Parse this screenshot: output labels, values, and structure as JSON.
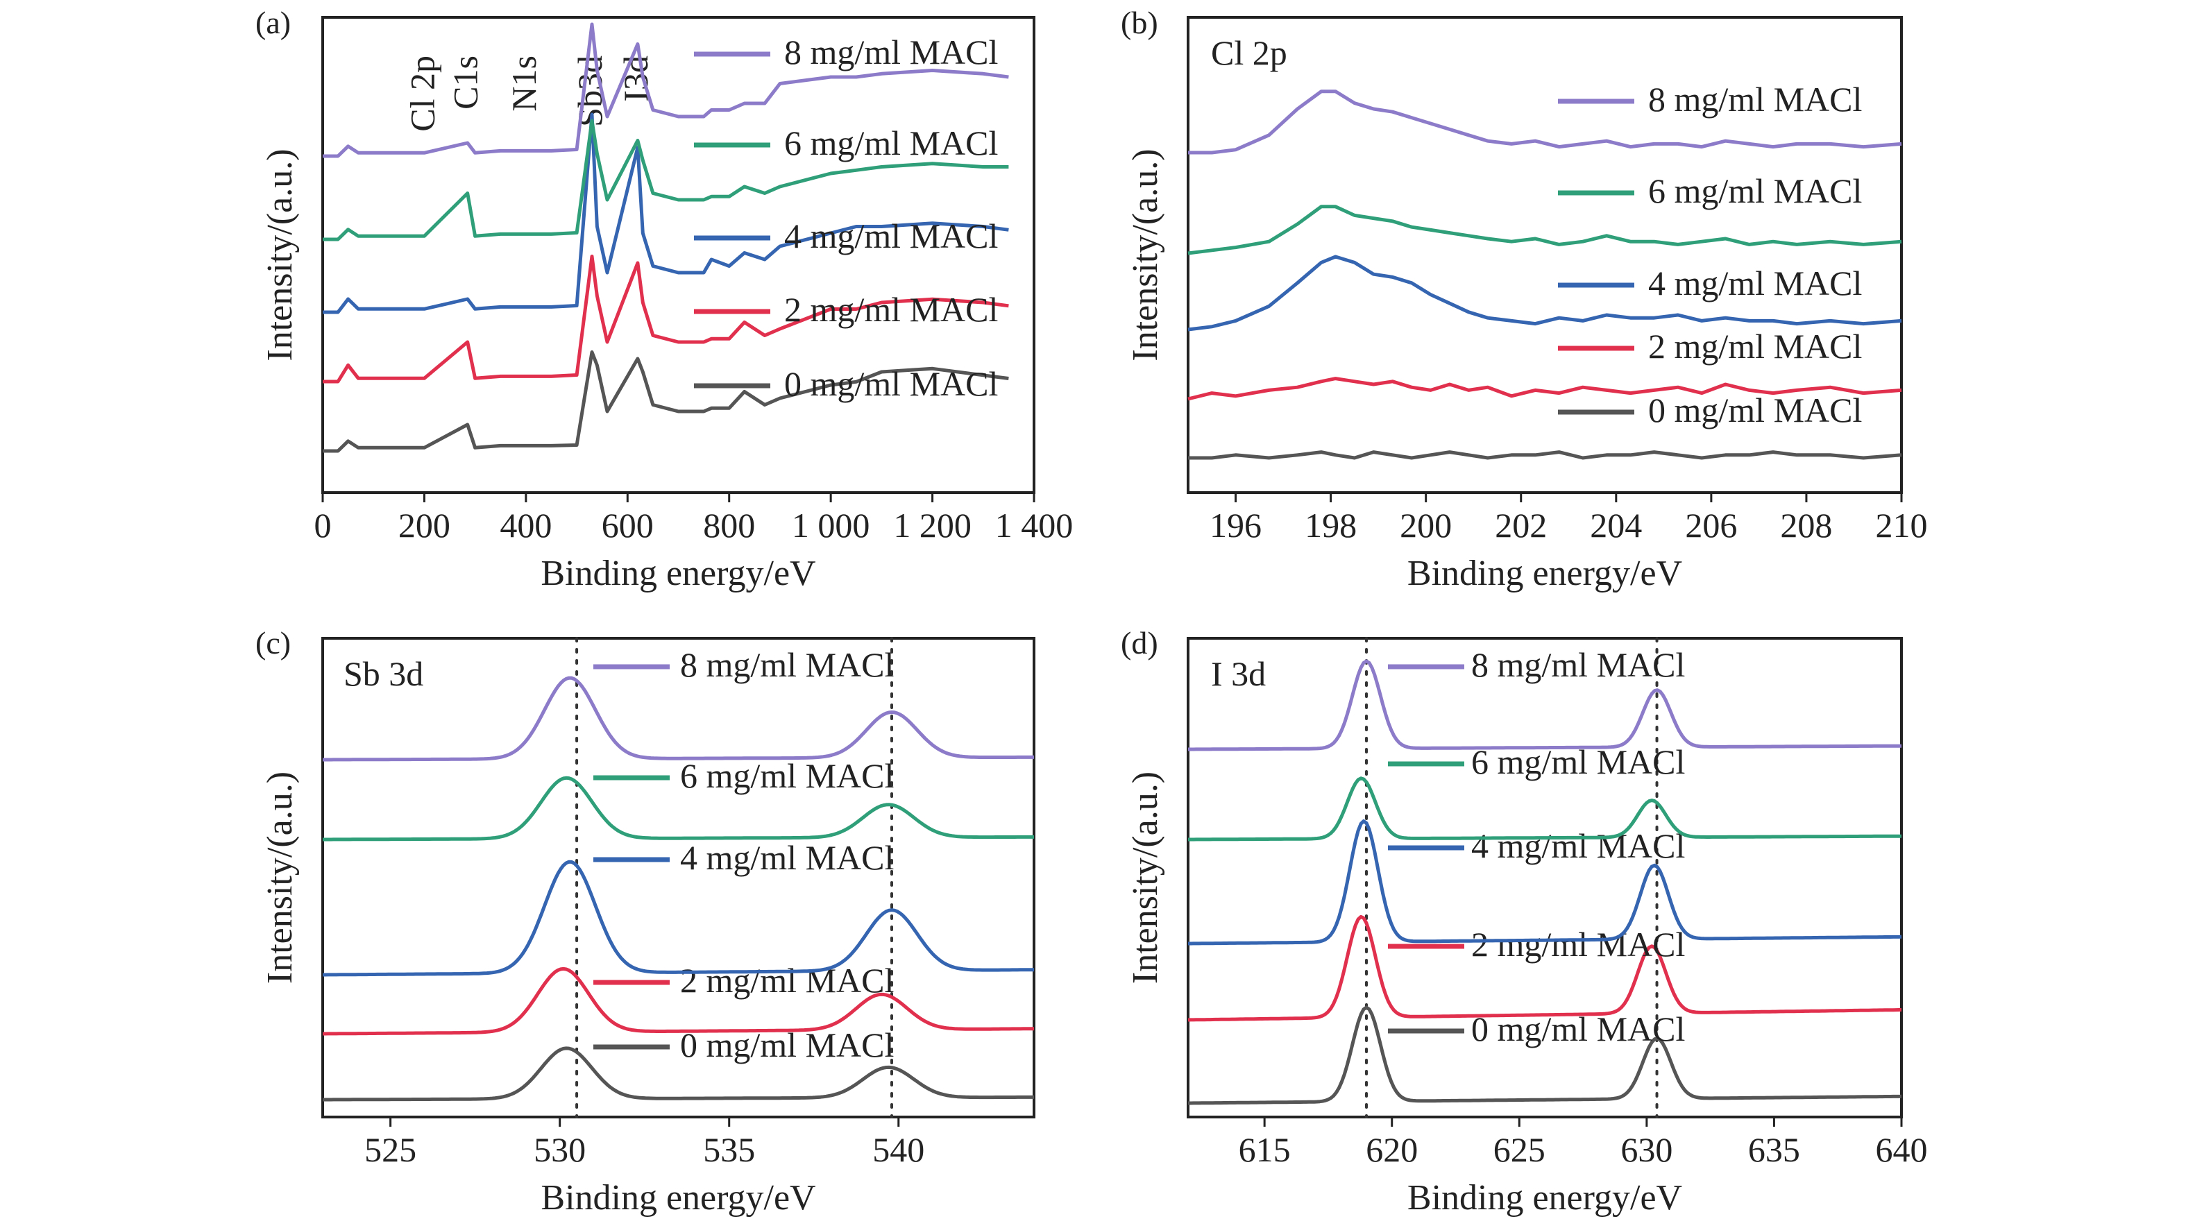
{
  "chart_data": [
    {
      "id": "a",
      "panel_label": "(a)",
      "type": "line",
      "xlabel": "Binding energy/eV",
      "ylabel": "Intensity/(a.u.)",
      "xlim": [
        0,
        1400
      ],
      "xticks": [
        0,
        200,
        400,
        600,
        800,
        1000,
        1200,
        1400
      ],
      "xtick_labels": [
        "0",
        "200",
        "400",
        "600",
        "800",
        "1 000",
        "1 200",
        "1 400"
      ],
      "grid": false,
      "legend_position": "right",
      "peak_labels": [
        {
          "text": "Cl 2p",
          "x": 200
        },
        {
          "text": "C1s",
          "x": 285
        },
        {
          "text": "N1s",
          "x": 400
        },
        {
          "text": "Sb3d",
          "x": 530
        },
        {
          "text": "I3d",
          "x": 620
        }
      ],
      "series": [
        {
          "name": "0 mg/ml MACl",
          "color": "#555555",
          "y": [
            0,
            0,
            1.5,
            0.5,
            0.5,
            0.5,
            4,
            0.5,
            0.8,
            0.8,
            0.8,
            0.9,
            15,
            13,
            6,
            14,
            12,
            7,
            6,
            6,
            6.5,
            6.5,
            9,
            7,
            8,
            10,
            10.5,
            12,
            12.5,
            11.5,
            11
          ]
        },
        {
          "name": "2 mg/ml MACl",
          "color": "#e0304e",
          "y": [
            0,
            0,
            2.5,
            0.5,
            0.5,
            0.5,
            6,
            0.5,
            0.8,
            0.8,
            0.8,
            1,
            19,
            13,
            6,
            18,
            12,
            7,
            6,
            6,
            6.5,
            6.5,
            9,
            7,
            8,
            11,
            11,
            12,
            12.5,
            12,
            11.5
          ]
        },
        {
          "name": "4 mg/ml MACl",
          "color": "#3565b0",
          "y": [
            0,
            0,
            2,
            0.5,
            0.5,
            0.5,
            2,
            0.5,
            0.8,
            0.8,
            0.8,
            1,
            30,
            13,
            6,
            25,
            12,
            7,
            6,
            6,
            8,
            7,
            9,
            8,
            10,
            12,
            13,
            13,
            13.5,
            13,
            12.5
          ]
        },
        {
          "name": "6 mg/ml MACl",
          "color": "#2f9f7a",
          "y": [
            0,
            0,
            1.5,
            0.5,
            0.5,
            0.5,
            7,
            0.5,
            0.8,
            0.8,
            0.8,
            1,
            18,
            13,
            6,
            15,
            12,
            7,
            6,
            6,
            6.5,
            6.5,
            8,
            7,
            8,
            10,
            10.5,
            11,
            11.5,
            11,
            11
          ]
        },
        {
          "name": "8 mg/ml MACl",
          "color": "#8c7bc8",
          "y": [
            0,
            0,
            1.5,
            0.5,
            0.5,
            0.5,
            2,
            0.5,
            0.8,
            0.8,
            0.8,
            1,
            20,
            13,
            6,
            17,
            12,
            7,
            6,
            6,
            7,
            7,
            8,
            8,
            11,
            12,
            12,
            12.5,
            13,
            12.5,
            12
          ]
        }
      ],
      "x": [
        0,
        30,
        50,
        70,
        100,
        200,
        285,
        300,
        350,
        400,
        450,
        500,
        530,
        540,
        560,
        620,
        630,
        650,
        700,
        750,
        765,
        800,
        830,
        870,
        900,
        1000,
        1050,
        1100,
        1200,
        1300,
        1350
      ]
    },
    {
      "id": "b",
      "panel_label": "(b)",
      "type": "line",
      "title": "Cl 2p",
      "xlabel": "Binding energy/eV",
      "ylabel": "Intensity/(a.u.)",
      "xlim": [
        195,
        210
      ],
      "xticks": [
        196,
        198,
        200,
        202,
        204,
        206,
        208,
        210
      ],
      "xtick_labels": [
        "196",
        "198",
        "200",
        "202",
        "204",
        "206",
        "208",
        "210"
      ],
      "grid": false,
      "legend_position": "right",
      "series": [
        {
          "name": "0 mg/ml MACl",
          "color": "#555555",
          "y": [
            0,
            0,
            0.1,
            0,
            0.1,
            0.2,
            0.1,
            0,
            0.2,
            0.1,
            0,
            0.1,
            0.2,
            0.1,
            0,
            0.1,
            0.1,
            0.2,
            0,
            0.1,
            0.1,
            0.2,
            0.1,
            0,
            0.1,
            0.1,
            0.2,
            0.1,
            0.1,
            0,
            0.1
          ]
        },
        {
          "name": "2 mg/ml MACl",
          "color": "#e0304e",
          "y": [
            0,
            0.2,
            0.1,
            0.3,
            0.4,
            0.6,
            0.7,
            0.6,
            0.5,
            0.6,
            0.4,
            0.3,
            0.5,
            0.3,
            0.4,
            0.1,
            0.3,
            0.2,
            0.4,
            0.3,
            0.2,
            0.3,
            0.4,
            0.2,
            0.5,
            0.3,
            0.2,
            0.3,
            0.4,
            0.2,
            0.3
          ]
        },
        {
          "name": "4 mg/ml MACl",
          "color": "#3565b0",
          "y": [
            0,
            0.1,
            0.3,
            0.8,
            1.6,
            2.3,
            2.5,
            2.3,
            1.9,
            1.8,
            1.6,
            1.2,
            0.9,
            0.6,
            0.4,
            0.3,
            0.2,
            0.4,
            0.3,
            0.5,
            0.4,
            0.4,
            0.5,
            0.3,
            0.4,
            0.3,
            0.3,
            0.2,
            0.3,
            0.2,
            0.3
          ]
        },
        {
          "name": "6 mg/ml MACl",
          "color": "#2f9f7a",
          "y": [
            0,
            0.1,
            0.2,
            0.4,
            1.0,
            1.6,
            1.6,
            1.3,
            1.2,
            1.1,
            0.9,
            0.8,
            0.7,
            0.6,
            0.5,
            0.4,
            0.5,
            0.3,
            0.4,
            0.6,
            0.4,
            0.4,
            0.3,
            0.4,
            0.5,
            0.3,
            0.4,
            0.3,
            0.4,
            0.3,
            0.4
          ]
        },
        {
          "name": "8 mg/ml MACl",
          "color": "#8c7bc8",
          "y": [
            0,
            0,
            0.1,
            0.6,
            1.5,
            2.1,
            2.1,
            1.7,
            1.5,
            1.4,
            1.2,
            1.0,
            0.8,
            0.6,
            0.4,
            0.3,
            0.4,
            0.2,
            0.3,
            0.4,
            0.2,
            0.3,
            0.3,
            0.2,
            0.4,
            0.3,
            0.2,
            0.3,
            0.3,
            0.2,
            0.3
          ]
        }
      ],
      "x": [
        195,
        195.5,
        196,
        196.7,
        197.3,
        197.8,
        198.1,
        198.5,
        198.9,
        199.3,
        199.7,
        200.1,
        200.5,
        200.9,
        201.3,
        201.8,
        202.3,
        202.8,
        203.3,
        203.8,
        204.3,
        204.8,
        205.3,
        205.8,
        206.3,
        206.8,
        207.3,
        207.8,
        208.5,
        209.2,
        210
      ]
    },
    {
      "id": "c",
      "panel_label": "(c)",
      "type": "line",
      "title": "Sb 3d",
      "xlabel": "Binding energy/eV",
      "ylabel": "Intensity/(a.u.)",
      "xlim": [
        523,
        544
      ],
      "xticks": [
        525,
        530,
        535,
        540
      ],
      "xtick_labels": [
        "525",
        "530",
        "535",
        "540"
      ],
      "grid": false,
      "legend_position": "right",
      "reference_lines_x": [
        530.5,
        539.8
      ],
      "series": [
        {
          "name": "0 mg/ml MACl",
          "color": "#555555",
          "peak1": 530.2,
          "peak2": 539.7,
          "height1": 1.0,
          "height2": 0.6,
          "offset": 0.05
        },
        {
          "name": "2 mg/ml MACl",
          "color": "#e0304e",
          "peak1": 530.1,
          "peak2": 539.5,
          "height1": 1.25,
          "height2": 0.7,
          "offset": 0.1
        },
        {
          "name": "4 mg/ml MACl",
          "color": "#3565b0",
          "peak1": 530.3,
          "peak2": 539.8,
          "height1": 2.2,
          "height2": 1.2,
          "offset": 0.1
        },
        {
          "name": "6 mg/ml MACl",
          "color": "#2f9f7a",
          "peak1": 530.2,
          "peak2": 539.7,
          "height1": 1.2,
          "height2": 0.65,
          "offset": 0.05
        },
        {
          "name": "8 mg/ml MACl",
          "color": "#8c7bc8",
          "peak1": 530.3,
          "peak2": 539.8,
          "height1": 1.6,
          "height2": 0.9,
          "offset": 0.05
        }
      ]
    },
    {
      "id": "d",
      "panel_label": "(d)",
      "type": "line",
      "title": "I 3d",
      "xlabel": "Binding energy/eV",
      "ylabel": "Intensity/(a.u.)",
      "xlim": [
        612,
        640
      ],
      "xticks": [
        615,
        620,
        625,
        630,
        635,
        640
      ],
      "xtick_labels": [
        "615",
        "620",
        "625",
        "630",
        "635",
        "640"
      ],
      "grid": false,
      "legend_position": "left",
      "reference_lines_x": [
        619.0,
        630.4
      ],
      "series": [
        {
          "name": "0 mg/ml MACl",
          "color": "#555555",
          "peak1": 619.0,
          "peak2": 630.4,
          "height1": 1.4,
          "height2": 0.9,
          "offset": 0.1
        },
        {
          "name": "2 mg/ml MACl",
          "color": "#e0304e",
          "peak1": 618.8,
          "peak2": 630.2,
          "height1": 1.5,
          "height2": 1.0,
          "offset": 0.15
        },
        {
          "name": "4 mg/ml MACl",
          "color": "#3565b0",
          "peak1": 618.9,
          "peak2": 630.3,
          "height1": 1.8,
          "height2": 1.1,
          "offset": 0.1
        },
        {
          "name": "6 mg/ml MACl",
          "color": "#2f9f7a",
          "peak1": 618.8,
          "peak2": 630.2,
          "height1": 0.9,
          "height2": 0.55,
          "offset": 0.05
        },
        {
          "name": "8 mg/ml MACl",
          "color": "#8c7bc8",
          "peak1": 619.0,
          "peak2": 630.4,
          "height1": 1.3,
          "height2": 0.85,
          "offset": 0.05
        }
      ]
    }
  ]
}
